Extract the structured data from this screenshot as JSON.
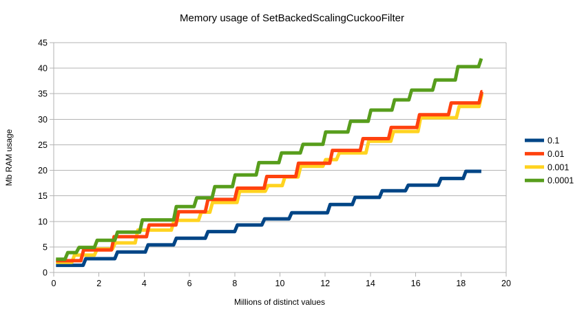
{
  "chart_data": {
    "type": "line",
    "step": true,
    "title": "Memory usage of SetBackedScalingCuckooFilter",
    "xlabel": "Millions of distinct values",
    "ylabel": "Mb RAM usage",
    "xlim": [
      0,
      20
    ],
    "ylim": [
      0,
      45
    ],
    "x_ticks": [
      0,
      2,
      4,
      6,
      8,
      10,
      12,
      14,
      16,
      18,
      20
    ],
    "y_ticks": [
      0,
      5,
      10,
      15,
      20,
      25,
      30,
      35,
      40,
      45
    ],
    "grid": "horizontal",
    "grid_color": "#b3b3b3",
    "axis_color": "#b3b3b3",
    "legend_position": "right",
    "series": [
      {
        "name": "0.1",
        "color": "#004586",
        "x_end": 18.9,
        "steps": [
          [
            0.1,
            1.4
          ],
          [
            1.3,
            2.7
          ],
          [
            2.7,
            4.0
          ],
          [
            4.05,
            5.4
          ],
          [
            5.3,
            6.7
          ],
          [
            6.7,
            8.0
          ],
          [
            8.0,
            9.3
          ],
          [
            9.2,
            10.5
          ],
          [
            10.4,
            11.7
          ],
          [
            12.1,
            13.3
          ],
          [
            13.2,
            14.7
          ],
          [
            14.4,
            16.0
          ],
          [
            15.55,
            17.1
          ],
          [
            17.0,
            18.4
          ],
          [
            18.1,
            19.8
          ]
        ]
      },
      {
        "name": "0.01",
        "color": "#FF420E",
        "x_end": 18.95,
        "steps": [
          [
            0.1,
            2.3
          ],
          [
            1.2,
            4.4
          ],
          [
            2.55,
            7.0
          ],
          [
            4.1,
            9.3
          ],
          [
            5.4,
            11.9
          ],
          [
            6.7,
            14.3
          ],
          [
            8.0,
            16.5
          ],
          [
            9.3,
            18.8
          ],
          [
            10.7,
            21.4
          ],
          [
            12.2,
            23.9
          ],
          [
            13.55,
            26.2
          ],
          [
            14.8,
            28.4
          ],
          [
            16.05,
            30.9
          ],
          [
            17.45,
            33.2
          ],
          [
            18.8,
            35.4
          ]
        ]
      },
      {
        "name": "0.001",
        "color": "#FFD320",
        "x_end": 18.9,
        "steps": [
          [
            0.1,
            2.0
          ],
          [
            0.8,
            3.4
          ],
          [
            1.8,
            4.6
          ],
          [
            2.6,
            5.8
          ],
          [
            3.6,
            8.3
          ],
          [
            5.2,
            10.2
          ],
          [
            6.4,
            11.8
          ],
          [
            6.9,
            13.7
          ],
          [
            8.1,
            15.9
          ],
          [
            9.35,
            17.0
          ],
          [
            10.1,
            18.7
          ],
          [
            10.8,
            20.8
          ],
          [
            11.9,
            22.1
          ],
          [
            12.5,
            23.4
          ],
          [
            13.8,
            25.7
          ],
          [
            14.9,
            27.6
          ],
          [
            16.1,
            30.3
          ],
          [
            17.8,
            32.5
          ],
          [
            18.8,
            34.8
          ]
        ]
      },
      {
        "name": "0.0001",
        "color": "#579D1C",
        "x_end": 18.9,
        "steps": [
          [
            0.1,
            2.6
          ],
          [
            0.5,
            3.9
          ],
          [
            1.0,
            4.9
          ],
          [
            1.8,
            6.3
          ],
          [
            2.7,
            7.9
          ],
          [
            3.8,
            10.3
          ],
          [
            5.3,
            12.9
          ],
          [
            6.2,
            14.6
          ],
          [
            7.0,
            16.8
          ],
          [
            7.9,
            19.1
          ],
          [
            8.95,
            21.5
          ],
          [
            9.95,
            23.4
          ],
          [
            10.9,
            25.1
          ],
          [
            11.9,
            27.5
          ],
          [
            13.0,
            29.6
          ],
          [
            13.9,
            31.8
          ],
          [
            14.95,
            33.8
          ],
          [
            15.7,
            35.7
          ],
          [
            16.75,
            37.7
          ],
          [
            17.75,
            40.3
          ],
          [
            18.78,
            41.9
          ]
        ]
      }
    ]
  }
}
